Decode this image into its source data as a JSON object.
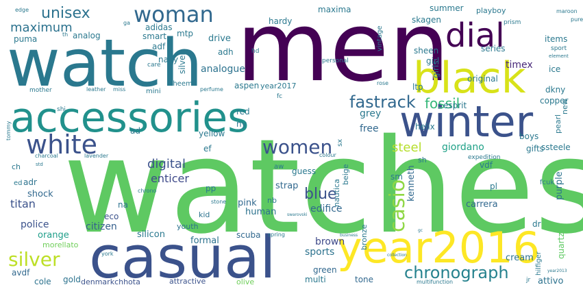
{
  "background": "#ffffff",
  "palette": [
    "#440154",
    "#3b528b",
    "#21918c",
    "#5ec962",
    "#fde725"
  ],
  "words": [
    {
      "text": "watches",
      "color": "#5ec962",
      "size": 999
    },
    {
      "text": "men",
      "color": "#440154",
      "size": 999
    },
    {
      "text": "watch",
      "color": "#2a788e",
      "size": 999
    },
    {
      "text": "casual",
      "color": "#3b528b",
      "size": 999
    },
    {
      "text": "accessories",
      "color": "#21918c",
      "size": 999
    },
    {
      "text": "winter",
      "color": "#3b528b",
      "size": 999
    },
    {
      "text": "year2016",
      "color": "#fde725",
      "size": 999
    },
    {
      "text": "black",
      "color": "#d8e219",
      "size": 999
    },
    {
      "text": "dial",
      "color": "#440154",
      "size": 999
    },
    {
      "text": "woman",
      "color": "#31688e",
      "size": 999
    },
    {
      "text": "white",
      "color": "#3b528b",
      "size": 999
    },
    {
      "text": "women",
      "color": "#3b528b",
      "size": 999
    },
    {
      "text": "silver",
      "color": "#bddf26",
      "size": 999
    },
    {
      "text": "chronograph",
      "color": "#26828e",
      "size": 999
    },
    {
      "text": "fastrack",
      "color": "#31688e",
      "size": 999
    },
    {
      "text": "unisex",
      "color": "#2c728e",
      "size": 999
    },
    {
      "text": "casio",
      "color": "#8fd744",
      "size": 999
    },
    {
      "text": "blue",
      "color": "#3b528b",
      "size": 999
    },
    {
      "text": "fossil",
      "color": "#35b779",
      "size": 999
    },
    {
      "text": "maximum",
      "color": "#2c728e",
      "size": 999
    },
    {
      "text": "digital",
      "color": "#3b528b",
      "size": 999
    },
    {
      "text": "steel",
      "color": "#b5de2b",
      "size": 999
    },
    {
      "text": "enticer",
      "color": "#3e4989",
      "size": 999
    },
    {
      "text": "analogue",
      "color": "#2c728e",
      "size": 999
    },
    {
      "text": "free",
      "color": "#31688e",
      "size": 999
    },
    {
      "text": "grey",
      "color": "#2a788e",
      "size": 999
    },
    {
      "text": "timex",
      "color": "#482878",
      "size": 999
    },
    {
      "text": "titan",
      "color": "#3b528b",
      "size": 999
    },
    {
      "text": "edifice",
      "color": "#31688e",
      "size": 999
    },
    {
      "text": "giordano",
      "color": "#1fa187",
      "size": 999
    },
    {
      "text": "police",
      "color": "#3b528b",
      "size": 999
    },
    {
      "text": "citizen",
      "color": "#35608d",
      "size": 999
    },
    {
      "text": "brown",
      "color": "#3e4989",
      "size": 999
    },
    {
      "text": "sports",
      "color": "#2c728e",
      "size": 999
    },
    {
      "text": "orange",
      "color": "#1f9e89",
      "size": 999
    },
    {
      "text": "silicon",
      "color": "#2a788e",
      "size": 999
    },
    {
      "text": "formal",
      "color": "#2c728e",
      "size": 999
    },
    {
      "text": "human",
      "color": "#2c728e",
      "size": 999
    },
    {
      "text": "pink",
      "color": "#31688e",
      "size": 999
    },
    {
      "text": "strap",
      "color": "#31688e",
      "size": 999
    },
    {
      "text": "carrera",
      "color": "#31688e",
      "size": 999
    },
    {
      "text": "purple",
      "color": "#2c728e",
      "size": 999
    },
    {
      "text": "kenneth",
      "color": "#31688e",
      "size": 999
    },
    {
      "text": "quartz",
      "color": "#5ec962",
      "size": 999
    },
    {
      "text": "attivo",
      "color": "#2c728e",
      "size": 999
    },
    {
      "text": "cream",
      "color": "#2c728e",
      "size": 999
    },
    {
      "text": "green",
      "color": "#31688e",
      "size": 999
    },
    {
      "text": "multi",
      "color": "#2a788e",
      "size": 999
    },
    {
      "text": "gold",
      "color": "#2c728e",
      "size": 999
    },
    {
      "text": "cole",
      "color": "#2c728e",
      "size": 999
    },
    {
      "text": "avdf",
      "color": "#31688e",
      "size": 999
    },
    {
      "text": "shock",
      "color": "#31688e",
      "size": 999
    },
    {
      "text": "adr",
      "color": "#2c728e",
      "size": 999
    },
    {
      "text": "kid",
      "color": "#2c728e",
      "size": 999
    },
    {
      "text": "youth",
      "color": "#2c728e",
      "size": 999
    },
    {
      "text": "scuba",
      "color": "#31688e",
      "size": 999
    },
    {
      "text": "tone",
      "color": "#31688e",
      "size": 999
    },
    {
      "text": "denmarkchhota",
      "color": "#3b528b",
      "size": 999
    },
    {
      "text": "attractive",
      "color": "#3b528b",
      "size": 999
    },
    {
      "text": "olive",
      "color": "#6ece58",
      "size": 999
    },
    {
      "text": "morellato",
      "color": "#6ece58",
      "size": 999
    },
    {
      "text": "eco",
      "color": "#3b528b",
      "size": 999
    },
    {
      "text": "na",
      "color": "#2c728e",
      "size": 999
    },
    {
      "text": "nb",
      "color": "#2a788e",
      "size": 999
    },
    {
      "text": "pp",
      "color": "#2a788e",
      "size": 999
    },
    {
      "text": "sm",
      "color": "#2a788e",
      "size": 999
    },
    {
      "text": "dr",
      "color": "#2a788e",
      "size": 999
    },
    {
      "text": "pl",
      "color": "#2a788e",
      "size": 999
    },
    {
      "text": "vdf",
      "color": "#2a788e",
      "size": 999
    },
    {
      "text": "fcuk",
      "color": "#2a788e",
      "size": 999
    },
    {
      "text": "expedition",
      "color": "#2a788e",
      "size": 999
    },
    {
      "text": "sh",
      "color": "#2a788e",
      "size": 999
    },
    {
      "text": "boys",
      "color": "#2a788e",
      "size": 999
    },
    {
      "text": "gifts",
      "color": "#2a788e",
      "size": 999
    },
    {
      "text": "ssteele",
      "color": "#2a788e",
      "size": 999
    },
    {
      "text": "pearl",
      "color": "#2a788e",
      "size": 999
    },
    {
      "text": "new",
      "color": "#2a788e",
      "size": 999
    },
    {
      "text": "helix",
      "color": "#2a788e",
      "size": 999
    },
    {
      "text": "copper",
      "color": "#2a788e",
      "size": 999
    },
    {
      "text": "esprit",
      "color": "#2a788e",
      "size": 999
    },
    {
      "text": "dkny",
      "color": "#2a788e",
      "size": 999
    },
    {
      "text": "ice",
      "color": "#2a788e",
      "size": 999
    },
    {
      "text": "ltp",
      "color": "#2a788e",
      "size": 999
    },
    {
      "text": "original",
      "color": "#2a788e",
      "size": 999
    },
    {
      "text": "girl",
      "color": "#2a788e",
      "size": 999
    },
    {
      "text": "girls",
      "color": "#2a788e",
      "size": 999
    },
    {
      "text": "sheen",
      "color": "#2a788e",
      "size": 999
    },
    {
      "text": "series",
      "color": "#2a788e",
      "size": 999
    },
    {
      "text": "items",
      "color": "#2a788e",
      "size": 999
    },
    {
      "text": "summer",
      "color": "#2a788e",
      "size": 999
    },
    {
      "text": "skagen",
      "color": "#2a788e",
      "size": 999
    },
    {
      "text": "maxima",
      "color": "#2a788e",
      "size": 999
    },
    {
      "text": "hardy",
      "color": "#2a788e",
      "size": 999
    },
    {
      "text": "playboy",
      "color": "#2a788e",
      "size": 999
    },
    {
      "text": "prism",
      "color": "#2a788e",
      "size": 999
    },
    {
      "text": "maroon",
      "color": "#2a788e",
      "size": 999
    },
    {
      "text": "pure",
      "color": "#2a788e",
      "size": 999
    },
    {
      "text": "edge",
      "color": "#2a788e",
      "size": 999
    },
    {
      "text": "sport",
      "color": "#2a788e",
      "size": 999
    },
    {
      "text": "element",
      "color": "#2a788e",
      "size": 999
    },
    {
      "text": "drive",
      "color": "#2a788e",
      "size": 999
    },
    {
      "text": "adh",
      "color": "#2a788e",
      "size": 999
    },
    {
      "text": "mtp",
      "color": "#2a788e",
      "size": 999
    },
    {
      "text": "smart",
      "color": "#2a788e",
      "size": 999
    },
    {
      "text": "adidas",
      "color": "#2a788e",
      "size": 999
    },
    {
      "text": "analog",
      "color": "#2a788e",
      "size": 999
    },
    {
      "text": "puma",
      "color": "#2a788e",
      "size": 999
    },
    {
      "text": "adf",
      "color": "#2a788e",
      "size": 999
    },
    {
      "text": "navy",
      "color": "#2a788e",
      "size": 999
    },
    {
      "text": "silver_v",
      "color": "#2a788e",
      "size": 999
    },
    {
      "text": "bheem",
      "color": "#2a788e",
      "size": 999
    },
    {
      "text": "mini",
      "color": "#2a788e",
      "size": 999
    },
    {
      "text": "aspen",
      "color": "#2a788e",
      "size": 999
    },
    {
      "text": "year2017",
      "color": "#2a788e",
      "size": 999
    },
    {
      "text": "red",
      "color": "#2a788e",
      "size": 999
    },
    {
      "text": "ny",
      "color": "#2a788e",
      "size": 999
    },
    {
      "text": "yellow",
      "color": "#2a788e",
      "size": 999
    },
    {
      "text": "ef",
      "color": "#2a788e",
      "size": 999
    },
    {
      "text": "guess",
      "color": "#2a788e",
      "size": 999
    },
    {
      "text": "beige",
      "color": "#2a788e",
      "size": 999
    },
    {
      "text": "sx",
      "color": "#2a788e",
      "size": 999
    },
    {
      "text": "nautica",
      "color": "#2a788e",
      "size": 999
    },
    {
      "text": "aw",
      "color": "#2a788e",
      "size": 999
    },
    {
      "text": "ch",
      "color": "#2a788e",
      "size": 999
    },
    {
      "text": "ad",
      "color": "#2a788e",
      "size": 999
    },
    {
      "text": "ed",
      "color": "#2a788e",
      "size": 999
    },
    {
      "text": "bronze",
      "color": "#2a788e",
      "size": 999
    },
    {
      "text": "hilfiger",
      "color": "#2a788e",
      "size": 999
    },
    {
      "text": "vintage",
      "color": "#2a788e",
      "size": 999
    },
    {
      "text": "hd",
      "color": "#2a788e",
      "size": 999
    },
    {
      "text": "personal",
      "color": "#2a788e",
      "size": 999
    },
    {
      "text": "mother",
      "color": "#2a788e",
      "size": 999
    },
    {
      "text": "care",
      "color": "#2a788e",
      "size": 999
    },
    {
      "text": "leather",
      "color": "#2a788e",
      "size": 999
    },
    {
      "text": "miss",
      "color": "#2a788e",
      "size": 999
    },
    {
      "text": "perfume",
      "color": "#2a788e",
      "size": 999
    },
    {
      "text": "fc",
      "color": "#2a788e",
      "size": 999
    },
    {
      "text": "shi",
      "color": "#2a788e",
      "size": 999
    },
    {
      "text": "tommy",
      "color": "#2a788e",
      "size": 999
    },
    {
      "text": "charcoal",
      "color": "#2a788e",
      "size": 999
    },
    {
      "text": "lavender",
      "color": "#2a788e",
      "size": 999
    },
    {
      "text": "colour",
      "color": "#2a788e",
      "size": 999
    },
    {
      "text": "std",
      "color": "#2a788e",
      "size": 999
    },
    {
      "text": "chrono",
      "color": "#2a788e",
      "size": 999
    },
    {
      "text": "stone",
      "color": "#2a788e",
      "size": 999
    },
    {
      "text": "swarovski",
      "color": "#2a788e",
      "size": 999
    },
    {
      "text": "spring",
      "color": "#2a788e",
      "size": 999
    },
    {
      "text": "york",
      "color": "#2a788e",
      "size": 999
    },
    {
      "text": "business",
      "color": "#2a788e",
      "size": 999
    },
    {
      "text": "collection",
      "color": "#2a788e",
      "size": 999
    },
    {
      "text": "multifunction",
      "color": "#2a788e",
      "size": 999
    },
    {
      "text": "jr",
      "color": "#2a788e",
      "size": 999
    },
    {
      "text": "year2013",
      "color": "#2a788e",
      "size": 999
    },
    {
      "text": "rose",
      "color": "#2a788e",
      "size": 999
    },
    {
      "text": "th",
      "color": "#2a788e",
      "size": 999
    },
    {
      "text": "ga",
      "color": "#2a788e",
      "size": 999
    },
    {
      "text": "gc",
      "color": "#2a788e",
      "size": 999
    }
  ]
}
